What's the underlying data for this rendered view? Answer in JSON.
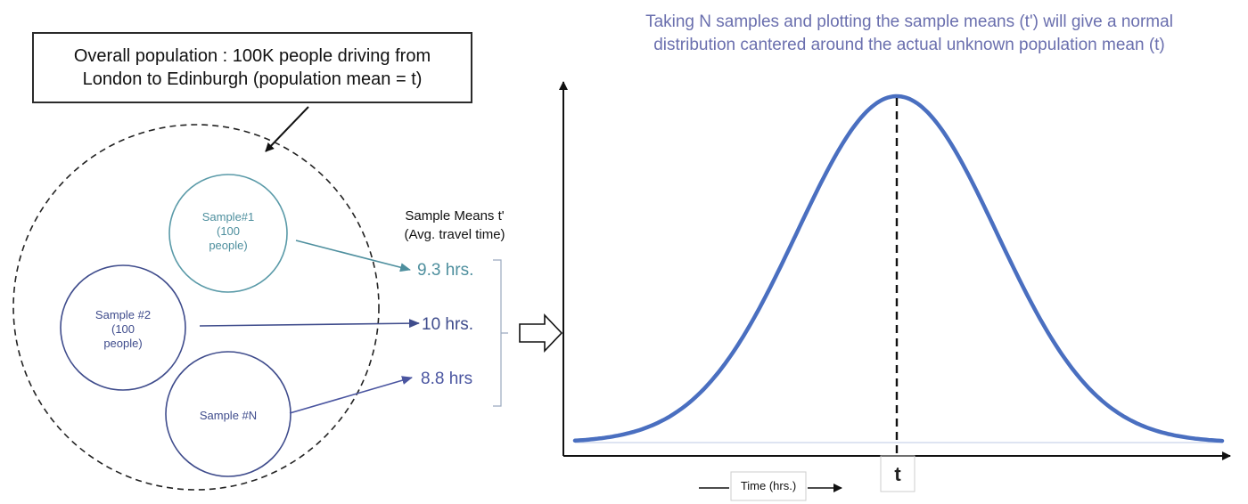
{
  "population_box": {
    "line1": "Overall population : 100K people driving from",
    "line2": "London to Edinburgh (population mean = t)"
  },
  "heading": {
    "line1": "Taking N samples and plotting the sample means (t') will give a normal",
    "line2": "distribution cantered around the actual unknown population mean (t)"
  },
  "samples": [
    {
      "line1": "Sample#1",
      "line2": "(100",
      "line3": "people)",
      "color": "#4e8f9e"
    },
    {
      "line1": "Sample #2",
      "line2": "(100",
      "line3": "people)",
      "color": "#3f4c8c"
    },
    {
      "line1": "Sample #N",
      "color": "#3f4c8c"
    }
  ],
  "means_header": {
    "line1": "Sample Means t'",
    "line2": "(Avg. travel time)"
  },
  "means": [
    {
      "label": "9.3 hrs.",
      "color": "#4e8f9e"
    },
    {
      "label": "10 hrs.",
      "color": "#3f4c8c"
    },
    {
      "label": "8.8 hrs",
      "color": "#4a55a0"
    }
  ],
  "plot": {
    "center_label": "t",
    "x_label": "Time (hrs.)",
    "curve_color": "#4a6fc0",
    "axis_color": "#111111"
  }
}
